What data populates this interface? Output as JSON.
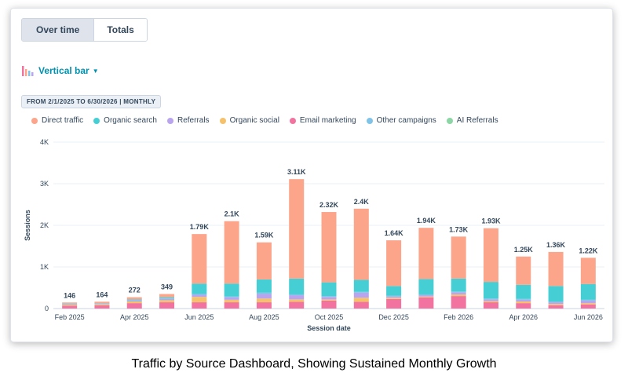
{
  "tabs": [
    {
      "label": "Over time",
      "active": true
    },
    {
      "label": "Totals",
      "active": false
    }
  ],
  "viz_selector": {
    "label": "Vertical bar",
    "icon": "bar-chart-icon"
  },
  "date_range": "FROM 2/1/2025 TO 6/30/2026 | MONTHLY",
  "caption": "Traffic by Source Dashboard, Showing Sustained Monthly Growth",
  "colors": {
    "accent": "#0091ae",
    "text": "#33475b",
    "gridline": "#eaf0f6"
  },
  "chart_data": {
    "type": "bar",
    "stacked": true,
    "xlabel": "Session date",
    "ylabel": "Sessions",
    "ylim": [
      0,
      4000
    ],
    "yticks": [
      0,
      1000,
      2000,
      3000,
      4000
    ],
    "ytick_labels": [
      "0",
      "1K",
      "2K",
      "3K",
      "4K"
    ],
    "grid": true,
    "legend_position": "top-left",
    "categories": [
      "Feb 2025",
      "Mar 2025",
      "Apr 2025",
      "May 2025",
      "Jun 2025",
      "Jul 2025",
      "Aug 2025",
      "Sep 2025",
      "Oct 2025",
      "Nov 2025",
      "Dec 2025",
      "Jan 2026",
      "Feb 2026",
      "Mar 2026",
      "Apr 2026",
      "May 2026",
      "Jun 2026"
    ],
    "x_tick_labels": [
      "Feb 2025",
      "",
      "Apr 2025",
      "",
      "Jun 2025",
      "",
      "Aug 2025",
      "",
      "Oct 2025",
      "",
      "Dec 2025",
      "",
      "Feb 2026",
      "",
      "Apr 2026",
      "",
      "Jun 2026"
    ],
    "totals": [
      "146",
      "164",
      "272",
      "349",
      "1.79K",
      "2.1K",
      "1.59K",
      "3.11K",
      "2.32K",
      "2.4K",
      "1.64K",
      "1.94K",
      "1.73K",
      "1.93K",
      "1.25K",
      "1.36K",
      "1.22K"
    ],
    "series": [
      {
        "name": "Email marketing",
        "color": "#f2739f",
        "values": [
          70,
          80,
          130,
          150,
          150,
          150,
          150,
          160,
          190,
          160,
          230,
          270,
          300,
          150,
          130,
          80,
          100
        ]
      },
      {
        "name": "Organic social",
        "color": "#f5c26b",
        "values": [
          20,
          20,
          40,
          50,
          130,
          60,
          90,
          60,
          30,
          100,
          30,
          20,
          40,
          30,
          40,
          30,
          30
        ]
      },
      {
        "name": "Referrals",
        "color": "#b9a5ef",
        "values": [
          10,
          10,
          20,
          30,
          50,
          60,
          110,
          100,
          60,
          120,
          30,
          30,
          50,
          40,
          40,
          40,
          60
        ]
      },
      {
        "name": "Other campaigns",
        "color": "#7fc4e8",
        "values": [
          5,
          5,
          10,
          10,
          20,
          20,
          30,
          20,
          20,
          20,
          20,
          20,
          20,
          20,
          20,
          20,
          20
        ]
      },
      {
        "name": "Organic search",
        "color": "#45cfd5",
        "values": [
          10,
          10,
          20,
          30,
          250,
          310,
          320,
          380,
          330,
          290,
          230,
          370,
          310,
          400,
          340,
          370,
          380
        ]
      },
      {
        "name": "AI Referrals",
        "color": "#8bd6a4",
        "values": [
          0,
          0,
          0,
          0,
          0,
          0,
          0,
          0,
          0,
          0,
          0,
          0,
          0,
          0,
          0,
          0,
          0
        ]
      },
      {
        "name": "Direct traffic",
        "color": "#fca58b",
        "values": [
          31,
          39,
          52,
          79,
          1190,
          1500,
          890,
          2390,
          1690,
          1710,
          1100,
          1230,
          1010,
          1290,
          680,
          820,
          630
        ]
      }
    ],
    "legend_order": [
      "Direct traffic",
      "Organic search",
      "Referrals",
      "Organic social",
      "Email marketing",
      "Other campaigns",
      "AI Referrals"
    ]
  }
}
